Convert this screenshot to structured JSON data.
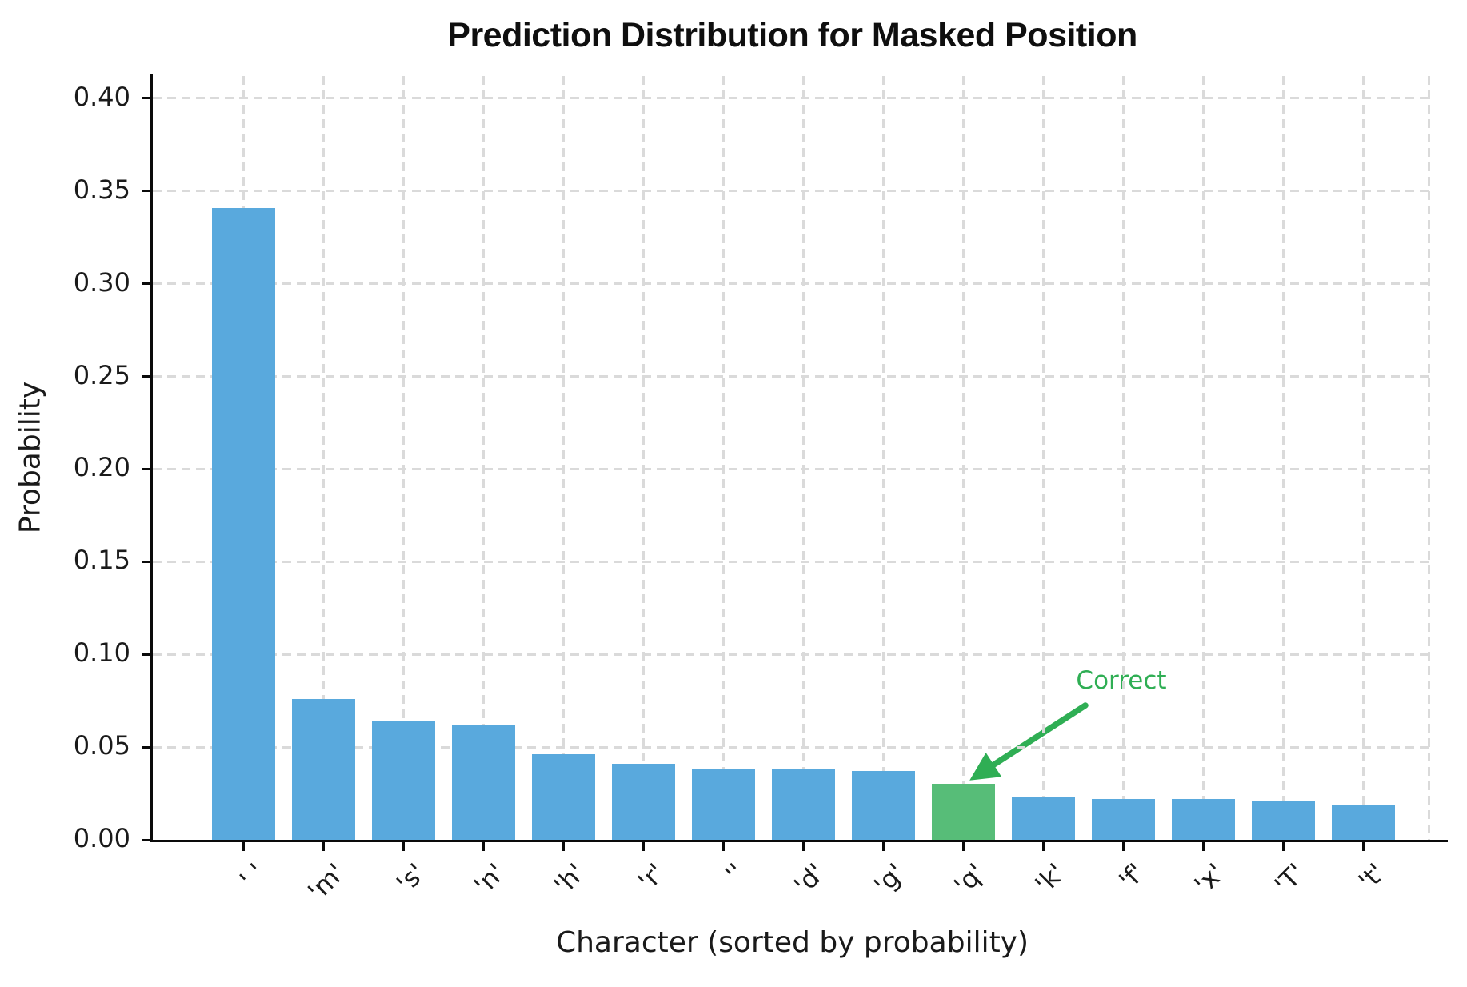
{
  "chart_data": {
    "type": "bar",
    "title": "Prediction Distribution for Masked Position",
    "xlabel": "Character (sorted by probability)",
    "ylabel": "Probability",
    "categories": [
      "' '",
      "'m'",
      "'s'",
      "'n'",
      "'h'",
      "'r'",
      "''",
      "'d'",
      "'g'",
      "'q'",
      "'k'",
      "'f'",
      "'x'",
      "'T'",
      "'t'"
    ],
    "values": [
      0.341,
      0.076,
      0.064,
      0.062,
      0.046,
      0.041,
      0.038,
      0.038,
      0.037,
      0.03,
      0.023,
      0.022,
      0.022,
      0.021,
      0.019
    ],
    "ylim": [
      0,
      0.412
    ],
    "yticks": [
      0.0,
      0.05,
      0.1,
      0.15,
      0.2,
      0.25,
      0.3,
      0.35,
      0.4
    ],
    "ytick_format_decimals": 2,
    "grid": true,
    "legend_position": "none",
    "highlight": {
      "index": 9,
      "category": "'q'",
      "label": "Correct"
    },
    "colors": {
      "bar_blue": "#59a9dd",
      "bar_green": "#57bd78",
      "annotation_green": "#2fae54",
      "gridline": "#dadada",
      "spine": "#0a0a0a",
      "text": "#1a1a1a"
    }
  }
}
